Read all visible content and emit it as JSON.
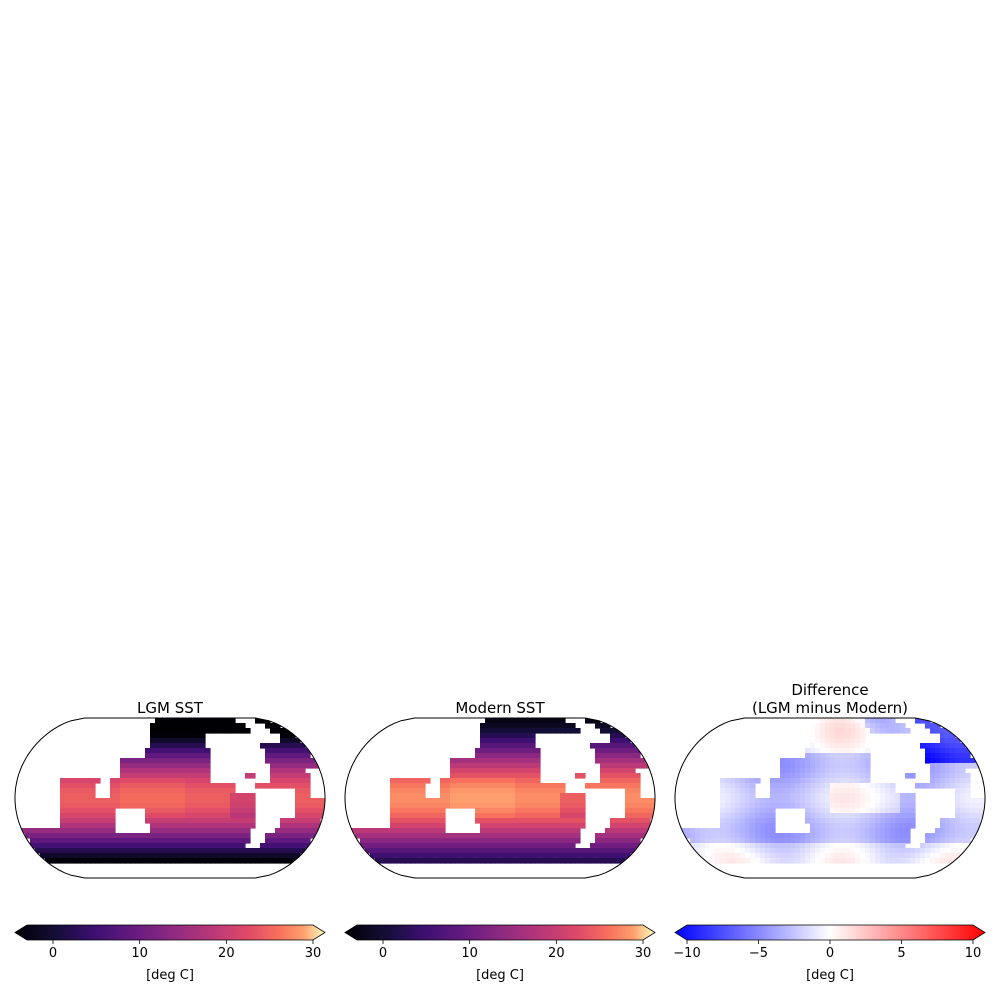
{
  "chart_data": [
    {
      "type": "heatmap",
      "title": "LGM SST",
      "colormap": "magma",
      "vmin": -3,
      "vmax": 30,
      "colorbar": {
        "ticks": [
          0,
          10,
          20,
          30
        ],
        "tick_labels": [
          "0",
          "10",
          "20",
          "30"
        ],
        "label": "[deg C]",
        "extend": "both"
      },
      "zonal_mean_sst": [
        {
          "lat": 80,
          "value": -1.5
        },
        {
          "lat": 60,
          "value": 2
        },
        {
          "lat": 40,
          "value": 12
        },
        {
          "lat": 20,
          "value": 23
        },
        {
          "lat": 0,
          "value": 25
        },
        {
          "lat": -20,
          "value": 22
        },
        {
          "lat": -40,
          "value": 12
        },
        {
          "lat": -60,
          "value": -0.5
        }
      ]
    },
    {
      "type": "heatmap",
      "title": "Modern SST",
      "colormap": "magma",
      "vmin": -3,
      "vmax": 30,
      "colorbar": {
        "ticks": [
          0,
          10,
          20,
          30
        ],
        "tick_labels": [
          "0",
          "10",
          "20",
          "30"
        ],
        "label": "[deg C]",
        "extend": "both"
      },
      "zonal_mean_sst": [
        {
          "lat": 80,
          "value": -1
        },
        {
          "lat": 60,
          "value": 5
        },
        {
          "lat": 40,
          "value": 15
        },
        {
          "lat": 20,
          "value": 26
        },
        {
          "lat": 0,
          "value": 28
        },
        {
          "lat": -20,
          "value": 25
        },
        {
          "lat": -40,
          "value": 14
        },
        {
          "lat": -60,
          "value": 0
        }
      ]
    },
    {
      "type": "heatmap",
      "title": "Difference\n(LGM minus Modern)",
      "colormap": "bwr",
      "vmin": -10,
      "vmax": 10,
      "colorbar": {
        "ticks": [
          -10,
          -5,
          0,
          5,
          10
        ],
        "tick_labels": [
          "−10",
          "−5",
          "0",
          "5",
          "10"
        ],
        "label": "[deg C]",
        "extend": "both"
      }
    }
  ],
  "colors": {
    "map_outline": "#000000",
    "land": "#ffffff",
    "coastline": "#c8c8c8"
  }
}
